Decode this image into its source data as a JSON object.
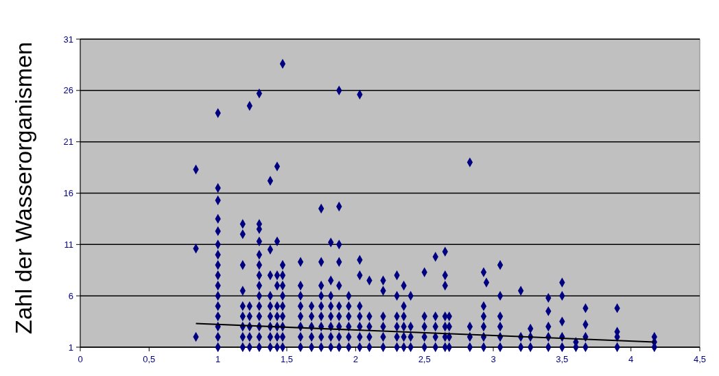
{
  "chart_data": {
    "type": "scatter",
    "ylabel": "Zahl der Wasserorganismen",
    "xlim": [
      0,
      4.5
    ],
    "ylim": [
      1,
      31
    ],
    "xticks": [
      0,
      {
        "value": 0.5,
        "label": "0,5"
      },
      1,
      {
        "value": 1.5,
        "label": "1,5"
      },
      2,
      {
        "value": 2.5,
        "label": "2,5"
      },
      3,
      {
        "value": 3.5,
        "label": "3,5"
      },
      4,
      {
        "value": 4.5,
        "label": "4,5"
      }
    ],
    "yticks": [
      1,
      6,
      11,
      16,
      21,
      26,
      31
    ],
    "grid": "y",
    "marker": "diamond",
    "series": [
      {
        "color": "#000080",
        "x": [
          0.84,
          0.84,
          0.84,
          1,
          1,
          1,
          1,
          1,
          1,
          1,
          1,
          1,
          1,
          1,
          1,
          1,
          1,
          1,
          1,
          1.18,
          1.18,
          1.18,
          1.18,
          1.18,
          1.18,
          1.18,
          1.18,
          1.18,
          1.23,
          1.23,
          1.23,
          1.23,
          1.23,
          1.23,
          1.3,
          1.3,
          1.3,
          1.3,
          1.3,
          1.3,
          1.3,
          1.3,
          1.3,
          1.3,
          1.3,
          1.3,
          1.3,
          1.3,
          1.38,
          1.38,
          1.38,
          1.38,
          1.38,
          1.38,
          1.38,
          1.38,
          1.38,
          1.43,
          1.43,
          1.43,
          1.43,
          1.43,
          1.43,
          1.43,
          1.43,
          1.43,
          1.47,
          1.47,
          1.47,
          1.47,
          1.47,
          1.47,
          1.47,
          1.47,
          1.47,
          1.47,
          1.6,
          1.6,
          1.6,
          1.6,
          1.6,
          1.6,
          1.6,
          1.6,
          1.68,
          1.68,
          1.68,
          1.68,
          1.68,
          1.75,
          1.75,
          1.75,
          1.75,
          1.75,
          1.75,
          1.75,
          1.75,
          1.75,
          1.82,
          1.82,
          1.82,
          1.82,
          1.82,
          1.82,
          1.82,
          1.82,
          1.88,
          1.88,
          1.88,
          1.88,
          1.88,
          1.88,
          1.88,
          1.88,
          1.88,
          1.88,
          1.95,
          1.95,
          1.95,
          1.95,
          1.95,
          1.95,
          2.03,
          2.03,
          2.03,
          2.03,
          2.03,
          2.03,
          2.03,
          2.03,
          2.1,
          2.1,
          2.1,
          2.1,
          2.1,
          2.2,
          2.2,
          2.2,
          2.2,
          2.2,
          2.2,
          2.3,
          2.3,
          2.3,
          2.3,
          2.3,
          2.3,
          2.35,
          2.35,
          2.35,
          2.35,
          2.35,
          2.35,
          2.4,
          2.4,
          2.4,
          2.4,
          2.5,
          2.5,
          2.5,
          2.5,
          2.5,
          2.58,
          2.58,
          2.58,
          2.58,
          2.58,
          2.65,
          2.65,
          2.65,
          2.65,
          2.65,
          2.65,
          2.65,
          2.68,
          2.68,
          2.68,
          2.68,
          2.83,
          2.83,
          2.83,
          2.83,
          2.93,
          2.93,
          2.93,
          2.93,
          2.93,
          2.93,
          2.95,
          3.05,
          3.05,
          3.05,
          3.05,
          3.05,
          3.05,
          3.2,
          3.2,
          3.2,
          3.27,
          3.27,
          3.27,
          3.4,
          3.4,
          3.4,
          3.4,
          3.4,
          3.5,
          3.5,
          3.5,
          3.5,
          3.5,
          3.6,
          3.6,
          3.67,
          3.67,
          3.67,
          3.67,
          3.9,
          3.9,
          3.9,
          3.9,
          4.17,
          4.17,
          4.17
        ],
        "values": [
          18.3,
          10.6,
          2,
          1,
          2,
          3,
          4,
          5,
          6,
          7,
          8,
          9,
          10,
          11,
          12.3,
          13.5,
          15.3,
          16.5,
          23.8,
          1,
          2,
          3,
          4,
          5,
          6.5,
          9,
          12,
          13,
          1,
          2,
          3,
          4,
          5,
          24.5,
          1,
          2,
          3,
          4,
          5,
          6,
          7,
          8,
          9,
          10,
          11.3,
          12.5,
          13,
          25.7,
          1,
          2,
          3,
          4,
          5,
          6,
          8,
          10.5,
          17.2,
          1,
          2,
          3,
          4,
          5,
          7,
          8,
          11.3,
          18.6,
          1,
          2,
          3,
          4,
          5,
          6,
          7,
          8,
          9,
          28.6,
          1,
          2,
          3,
          4,
          5,
          6,
          7,
          9.3,
          1,
          2,
          3,
          4,
          5,
          1,
          2,
          3,
          4,
          5,
          6,
          7,
          9.3,
          14.5,
          1,
          2,
          3,
          4,
          5,
          6,
          7.5,
          11.2,
          1,
          2,
          3,
          4,
          5,
          7,
          9.3,
          11,
          14.7,
          26,
          1,
          2,
          3,
          4,
          5,
          6,
          1,
          2,
          3,
          4,
          5,
          8,
          9.5,
          25.6,
          1,
          2,
          3,
          4,
          7.5,
          1,
          2,
          3,
          4,
          6.5,
          7.5,
          1,
          2,
          3,
          4,
          6,
          8,
          1,
          2,
          3,
          4,
          5,
          7,
          1,
          2,
          3,
          6,
          1,
          2,
          3,
          4,
          8.3,
          1,
          2,
          3,
          4,
          9.8,
          1,
          2,
          3,
          4,
          7,
          8,
          10.3,
          1,
          2,
          3,
          4,
          1,
          2,
          3,
          19,
          1,
          2,
          3,
          4,
          5,
          8.3,
          7.3,
          1,
          2,
          3,
          4,
          6,
          9,
          1,
          2,
          6.5,
          1,
          2,
          2.8,
          1,
          2,
          3,
          4.5,
          5.8,
          1,
          2,
          3.5,
          6,
          7.3,
          1,
          1.5,
          1,
          2,
          3.2,
          4.8,
          1,
          2,
          2.5,
          4.8,
          1,
          1.5,
          2
        ]
      },
      {
        "type": "line",
        "marker": "none",
        "color": "#000000",
        "x": [
          0.84,
          4.17
        ],
        "values": [
          3.3,
          1.5
        ]
      }
    ]
  }
}
